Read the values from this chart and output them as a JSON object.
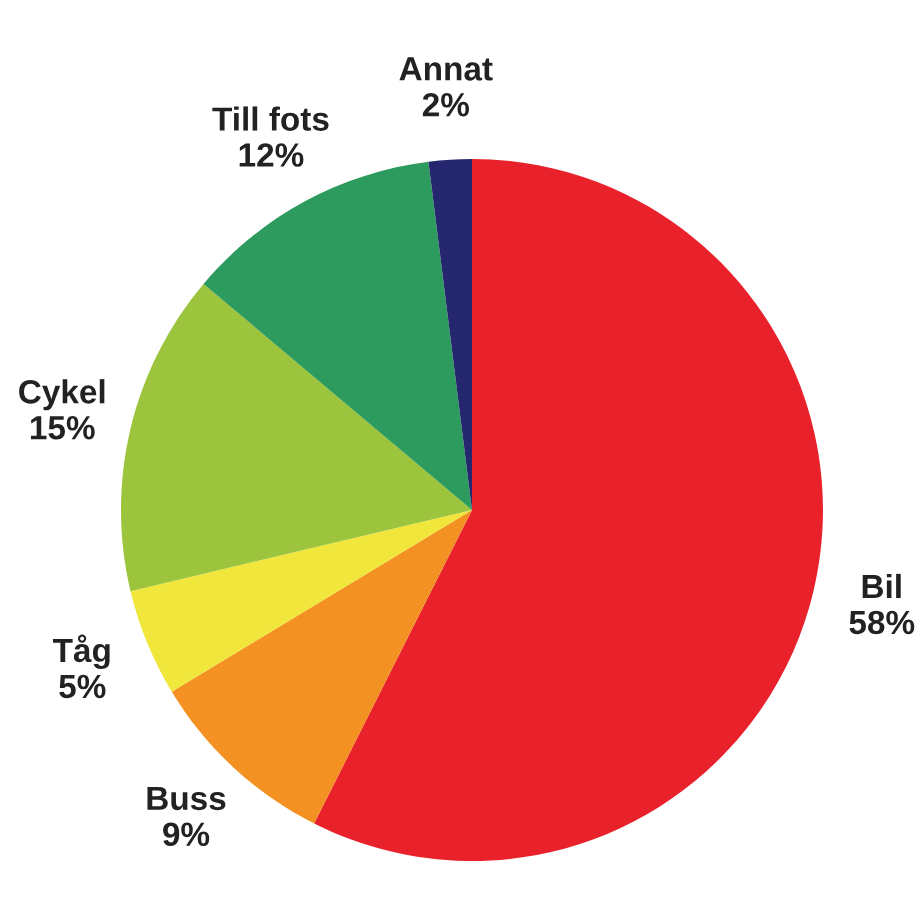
{
  "chart_data": {
    "type": "pie",
    "categories": [
      "Bil",
      "Buss",
      "Tåg",
      "Cykel",
      "Till fots",
      "Annat"
    ],
    "values": [
      58,
      9,
      5,
      15,
      12,
      2
    ],
    "value_labels": [
      "58%",
      "9%",
      "5%",
      "15%",
      "12%",
      "2%"
    ],
    "colors": [
      "#e8212a",
      "#f39122",
      "#f0e63c",
      "#9cc43c",
      "#2e9b5e",
      "#25276e"
    ]
  }
}
